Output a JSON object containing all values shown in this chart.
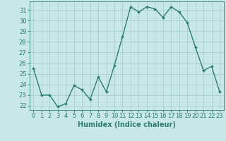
{
  "x": [
    0,
    1,
    2,
    3,
    4,
    5,
    6,
    7,
    8,
    9,
    10,
    11,
    12,
    13,
    14,
    15,
    16,
    17,
    18,
    19,
    20,
    21,
    22,
    23
  ],
  "y": [
    25.5,
    23.0,
    23.0,
    21.9,
    22.2,
    23.9,
    23.5,
    22.6,
    24.7,
    23.3,
    25.8,
    28.5,
    31.3,
    30.8,
    31.3,
    31.1,
    30.3,
    31.3,
    30.8,
    29.8,
    27.5,
    25.3,
    25.7,
    23.3
  ],
  "line_color": "#2e7d6e",
  "marker": "D",
  "marker_size": 2,
  "bg_color": "#c8e8e8",
  "grid_color": "#a8cece",
  "ylabel_values": [
    22,
    23,
    24,
    25,
    26,
    27,
    28,
    29,
    30,
    31
  ],
  "ylim": [
    21.6,
    31.8
  ],
  "xlim": [
    -0.5,
    23.5
  ],
  "xlabel": "Humidex (Indice chaleur)",
  "xlabel_fontsize": 7,
  "tick_fontsize": 6,
  "linewidth": 1.0
}
